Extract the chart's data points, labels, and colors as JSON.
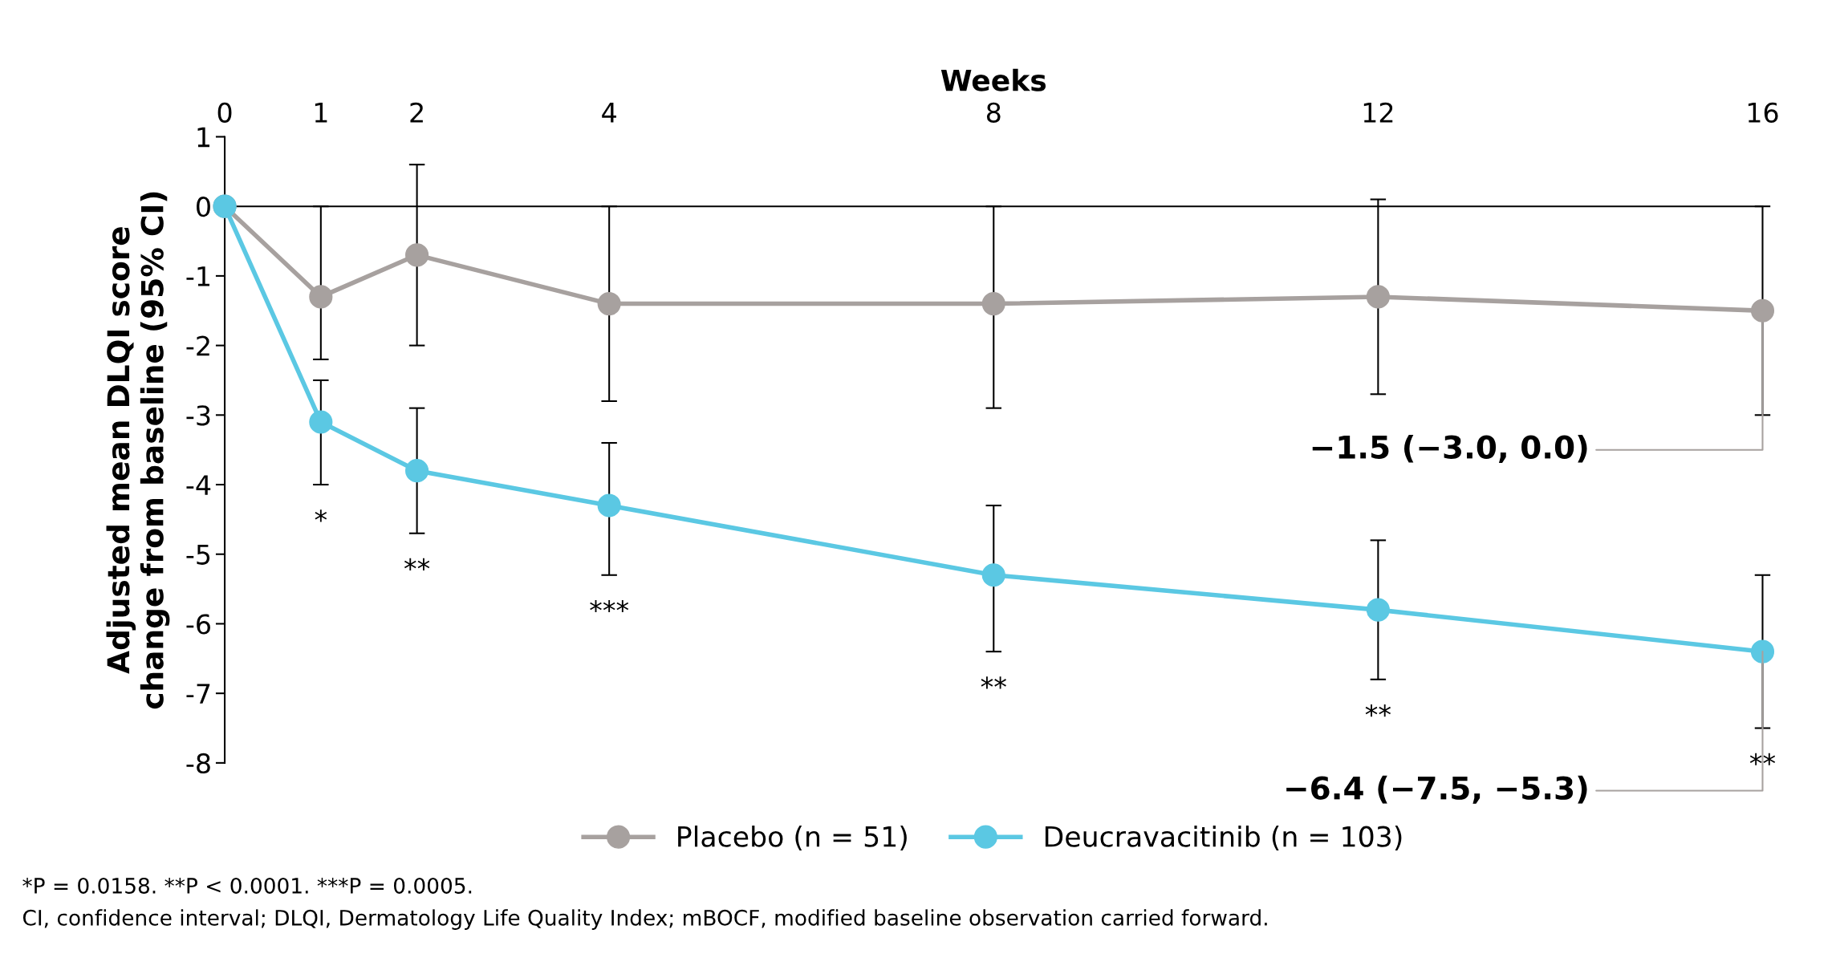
{
  "chart_data": {
    "type": "line",
    "xlabel": "Weeks",
    "ylabel": "Adjusted mean DLQI score\nchange from baseline (95% CI)",
    "x": [
      0,
      1,
      2,
      4,
      8,
      12,
      16
    ],
    "series": [
      {
        "name": "Placebo (n = 51)",
        "color": "#a7a19f",
        "values": [
          0,
          -1.3,
          -0.7,
          -1.4,
          -1.4,
          -1.3,
          -1.5
        ],
        "errors": [
          null,
          [
            -2.2,
            0.0
          ],
          [
            -2.0,
            0.6
          ],
          [
            -2.8,
            0.0
          ],
          [
            -2.9,
            0.0
          ],
          [
            -2.7,
            0.1
          ],
          [
            -3.0,
            0.0
          ]
        ]
      },
      {
        "name": "Deucravacitinib (n = 103)",
        "color": "#5bc8e3",
        "values": [
          0,
          -3.1,
          -3.8,
          -4.3,
          -5.3,
          -5.8,
          -6.4
        ],
        "errors": [
          null,
          [
            -4.0,
            -2.5
          ],
          [
            -4.7,
            -2.9
          ],
          [
            -5.3,
            -3.4
          ],
          [
            -6.4,
            -4.3
          ],
          [
            -6.8,
            -4.8
          ],
          [
            -7.5,
            -5.3
          ]
        ]
      }
    ],
    "xlim": [
      0,
      16
    ],
    "xticks": [
      0,
      1,
      2,
      4,
      8,
      12,
      16
    ],
    "ylim": [
      -8,
      1
    ],
    "yticks": [
      -8,
      -7,
      -6,
      -5,
      -4,
      -3,
      -2,
      -1,
      0,
      1
    ],
    "marker": "circle",
    "line_style": "solid",
    "legend": "bottom",
    "annotations": [
      "*",
      "**",
      "***",
      "**",
      "**",
      "**",
      {
        "text": "−1.5 (−3.0, 0.0)",
        "x": 16,
        "y": -1.5
      },
      {
        "text": "−6.4 (−7.5, −5.3)",
        "x": 16,
        "y": -6.4
      },
      "*P = 0.0158. **P < 0.0001. ***P = 0.0005.",
      "CI, confidence interval; DLQI, Dermatology Life Quality Index; mBOCF, modified baseline observation carried forward."
    ]
  }
}
